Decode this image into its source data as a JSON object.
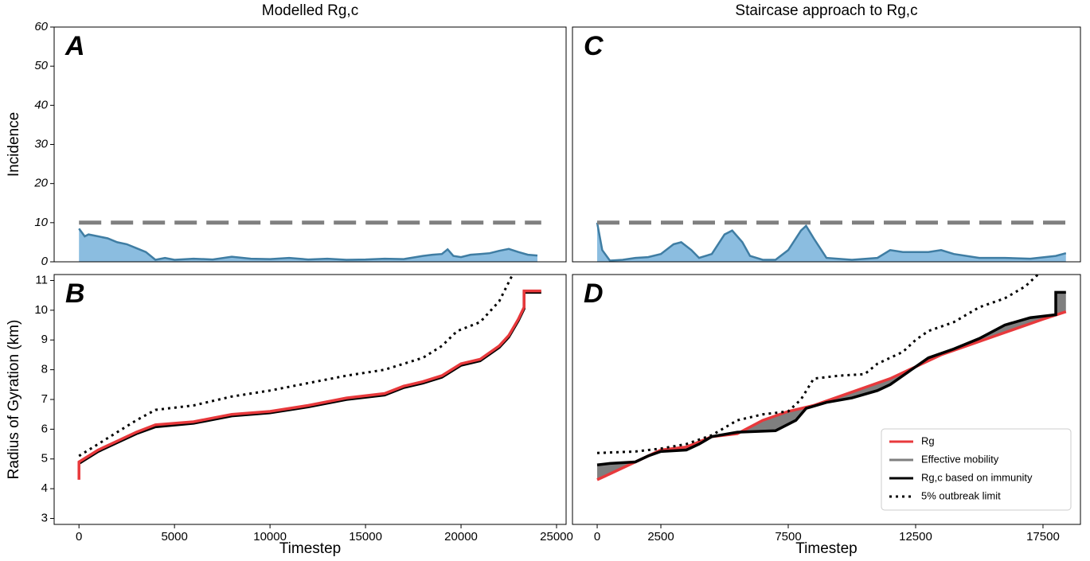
{
  "chart_data": [
    {
      "type": "line",
      "title": "Modelled Rg,c",
      "label": "A",
      "ylabel": "Incidence",
      "xlim": [
        -1300,
        25500
      ],
      "ylim": [
        0,
        60
      ],
      "yticks": [
        0,
        10,
        20,
        30,
        40,
        50,
        60
      ],
      "series": [
        {
          "style": "fill",
          "color": "#3f7da3",
          "fill": "#8bbde0",
          "x": [
            0,
            300,
            500,
            1000,
            1500,
            2000,
            2500,
            3000,
            3500,
            4000,
            4500,
            5000,
            6000,
            7000,
            8000,
            9000,
            10000,
            11000,
            12000,
            13000,
            14000,
            15000,
            16000,
            17000,
            18000,
            18500,
            19000,
            19300,
            19600,
            20000,
            20500,
            21000,
            21500,
            22000,
            22500,
            23000,
            23500,
            24000
          ],
          "values": [
            8.5,
            6.5,
            7,
            6.5,
            6,
            5,
            4.5,
            3.5,
            2.5,
            0.5,
            1,
            0.5,
            0.8,
            0.6,
            1.3,
            0.8,
            0.7,
            1,
            0.6,
            0.8,
            0.5,
            0.6,
            0.8,
            0.7,
            1.5,
            1.8,
            2,
            3.2,
            1.5,
            1.2,
            1.8,
            2,
            2.2,
            2.8,
            3.3,
            2.5,
            1.8,
            1.6
          ]
        },
        {
          "style": "dashed",
          "color": "#808080",
          "x": [
            0,
            24200
          ],
          "values": [
            10,
            10
          ]
        }
      ]
    },
    {
      "type": "line",
      "label": "B",
      "ylabel": "Radius of Gyration (km)",
      "xlabel": "Timestep",
      "xlim": [
        -1300,
        25500
      ],
      "ylim": [
        2.8,
        11.2
      ],
      "xticks": [
        0,
        5000,
        10000,
        15000,
        20000,
        25000
      ],
      "yticks": [
        3,
        4,
        5,
        6,
        7,
        8,
        9,
        10,
        11
      ],
      "series": [
        {
          "style": "solid",
          "color": "#000000",
          "x": [
            0,
            1000,
            2000,
            3000,
            4000,
            6000,
            8000,
            10000,
            12000,
            14000,
            16000,
            17000,
            18000,
            19000,
            20000,
            21000,
            22000,
            22500,
            23000,
            23300,
            23300,
            24200
          ],
          "values": [
            4.85,
            5.25,
            5.55,
            5.85,
            6.08,
            6.2,
            6.45,
            6.55,
            6.75,
            7.0,
            7.15,
            7.4,
            7.55,
            7.75,
            8.15,
            8.3,
            8.75,
            9.1,
            9.65,
            10.05,
            10.6,
            10.6
          ]
        },
        {
          "style": "solid",
          "color": "#e8393c",
          "x": [
            0,
            0,
            1000,
            2000,
            3000,
            4000,
            6000,
            8000,
            10000,
            12000,
            14000,
            16000,
            17000,
            18000,
            19000,
            20000,
            21000,
            22000,
            22500,
            23000,
            23300,
            23300,
            24200
          ],
          "values": [
            4.3,
            4.9,
            5.3,
            5.6,
            5.9,
            6.15,
            6.25,
            6.5,
            6.6,
            6.8,
            7.05,
            7.2,
            7.45,
            7.6,
            7.8,
            8.2,
            8.35,
            8.8,
            9.15,
            9.7,
            10.1,
            10.65,
            10.65
          ]
        },
        {
          "style": "dotted",
          "color": "#000000",
          "x": [
            0,
            1000,
            2000,
            3000,
            4000,
            6000,
            8000,
            10000,
            12000,
            14000,
            16000,
            17000,
            18000,
            19000,
            19800,
            21000,
            22000,
            22700
          ],
          "values": [
            5.1,
            5.5,
            5.9,
            6.3,
            6.65,
            6.8,
            7.1,
            7.3,
            7.55,
            7.8,
            8.0,
            8.2,
            8.4,
            8.8,
            9.3,
            9.6,
            10.3,
            11.2
          ]
        }
      ]
    },
    {
      "type": "line",
      "title": "Staircase approach to Rg,c",
      "label": "C",
      "xlim": [
        -970,
        18970
      ],
      "ylim": [
        0,
        60
      ],
      "series": [
        {
          "style": "fill",
          "color": "#3f7da3",
          "fill": "#8bbde0",
          "x": [
            0,
            200,
            500,
            1000,
            1500,
            2000,
            2500,
            3000,
            3300,
            3700,
            4000,
            4500,
            5000,
            5300,
            5700,
            6000,
            6500,
            7000,
            7500,
            8000,
            8200,
            8500,
            9000,
            10000,
            11000,
            11500,
            12000,
            13000,
            13500,
            14000,
            15000,
            16000,
            17000,
            18000,
            18400
          ],
          "values": [
            10,
            3,
            0.3,
            0.5,
            1,
            1.2,
            2,
            4.5,
            5,
            3,
            1,
            2,
            7,
            8,
            5,
            1.5,
            0.5,
            0.5,
            3,
            8,
            9.2,
            6,
            1,
            0.5,
            1,
            3,
            2.5,
            2.5,
            3,
            2,
            1,
            1,
            0.8,
            1.5,
            2.2
          ]
        },
        {
          "style": "dashed",
          "color": "#808080",
          "x": [
            0,
            18400
          ],
          "values": [
            10,
            10
          ]
        }
      ]
    },
    {
      "type": "line",
      "label": "D",
      "xlabel": "Timestep",
      "xlim": [
        -970,
        18970
      ],
      "ylim": [
        2.8,
        11.2
      ],
      "xticks": [
        0,
        2500,
        7500,
        12500,
        17500
      ],
      "legend": "lower right",
      "fill_between": {
        "name": "Effective mobility",
        "color": "#7f7f7f"
      },
      "series": [
        {
          "name": "Rg",
          "style": "solid",
          "color": "#e8393c",
          "x": [
            0,
            500,
            1500,
            2500,
            3500,
            4500,
            5500,
            6500,
            7500,
            8500,
            9500,
            10500,
            11500,
            12500,
            13500,
            14500,
            15500,
            16500,
            17500,
            18400
          ],
          "values": [
            4.3,
            4.5,
            4.9,
            5.3,
            5.4,
            5.75,
            5.85,
            6.3,
            6.6,
            6.8,
            7.1,
            7.4,
            7.7,
            8.1,
            8.5,
            8.8,
            9.1,
            9.4,
            9.7,
            9.95
          ]
        },
        {
          "name": "Rg,c based on immunity",
          "style": "solid",
          "color": "#000000",
          "x": [
            0,
            500,
            1500,
            2000,
            2500,
            3500,
            4000,
            4500,
            5500,
            7000,
            7800,
            8200,
            9000,
            10000,
            11000,
            11500,
            12500,
            13000,
            14000,
            15000,
            16000,
            17000,
            18000,
            18000,
            18400
          ],
          "values": [
            4.8,
            4.85,
            4.9,
            5.1,
            5.25,
            5.3,
            5.5,
            5.75,
            5.9,
            5.95,
            6.3,
            6.7,
            6.9,
            7.05,
            7.3,
            7.5,
            8.1,
            8.4,
            8.7,
            9.05,
            9.5,
            9.75,
            9.85,
            10.6,
            10.6
          ]
        },
        {
          "name": "5% outbreak limit",
          "style": "dotted",
          "color": "#000000",
          "x": [
            0,
            1500,
            2500,
            3500,
            4500,
            5500,
            6500,
            7500,
            8000,
            8500,
            9500,
            10500,
            11000,
            12000,
            12500,
            13000,
            14000,
            15000,
            16000,
            16800,
            17300
          ],
          "values": [
            5.2,
            5.25,
            5.35,
            5.5,
            5.8,
            6.3,
            6.5,
            6.6,
            7.0,
            7.7,
            7.8,
            7.85,
            8.2,
            8.6,
            9.0,
            9.3,
            9.6,
            10.1,
            10.4,
            10.8,
            11.2
          ]
        }
      ]
    }
  ]
}
